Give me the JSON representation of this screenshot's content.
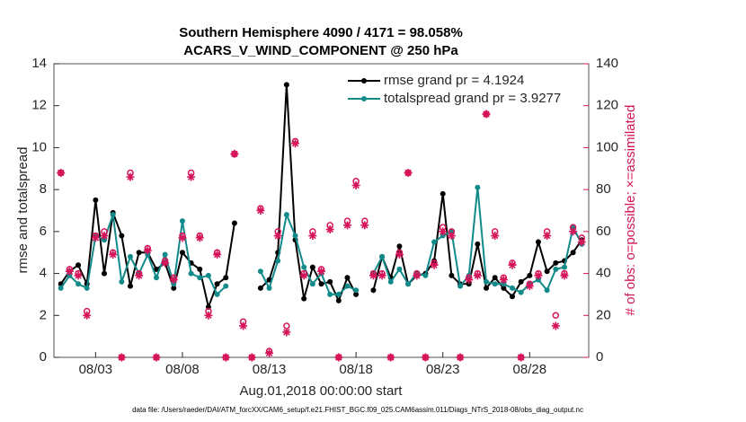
{
  "chart_data": {
    "type": "line",
    "title": "Southern Hemisphere 4090 / 4171 = 98.058%",
    "subtitle": "ACARS_V_WIND_COMPONENT @ 250 hPa",
    "xlabel": "Aug.01,2018 00:00:00 start",
    "ylabel": "rmse and totalspread",
    "y2label": "# of obs: o=possible; ×=assimilated",
    "note": "data file: /Users/raeder/DAI/ATM_forcXX/CAM6_setup/f.e21.FHIST_BGC.f09_025.CAM6assim.011/Diags_NTrS_2018-08/obs_diag_output.nc",
    "x": [
      1,
      1.5,
      2,
      2.5,
      3,
      3.5,
      4,
      4.5,
      5,
      5.5,
      6,
      6.5,
      7,
      7.5,
      8,
      8.5,
      9,
      9.5,
      10,
      10.5,
      11,
      11.5,
      12,
      12.5,
      13,
      13.5,
      14,
      14.5,
      15,
      15.5,
      16,
      16.5,
      17,
      17.5,
      18,
      18.5,
      19,
      19.5,
      20,
      20.5,
      21,
      21.5,
      22,
      22.5,
      23,
      23.5,
      24,
      24.5,
      25,
      25.5,
      26,
      26.5,
      27,
      27.5,
      28,
      28.5,
      29,
      29.5,
      30,
      30.5,
      31
    ],
    "xlim": [
      0.6,
      31.4
    ],
    "xticks": [
      {
        "value": 3,
        "label": "08/03"
      },
      {
        "value": 8,
        "label": "08/08"
      },
      {
        "value": 13,
        "label": "08/13"
      },
      {
        "value": 18,
        "label": "08/18"
      },
      {
        "value": 23,
        "label": "08/23"
      },
      {
        "value": 28,
        "label": "08/28"
      }
    ],
    "ylim": [
      0,
      14
    ],
    "yticks": [
      0,
      2,
      4,
      6,
      8,
      10,
      12,
      14
    ],
    "y2lim": [
      0,
      140
    ],
    "y2ticks": [
      0,
      20,
      40,
      60,
      80,
      100,
      120,
      140
    ],
    "y2color": "#d6145a",
    "legend": "upper right",
    "legend_text_color": "#1f4fe0",
    "series": [
      {
        "name": "rmse grand pr = 4.1924",
        "color": "#000000",
        "marker": "dot",
        "values": [
          3.5,
          4.1,
          4.4,
          3.5,
          7.5,
          4.0,
          6.9,
          5.8,
          3.4,
          5.0,
          5.0,
          4.2,
          4.5,
          3.3,
          5.0,
          4.5,
          4.2,
          2.4,
          3.5,
          3.8,
          6.4,
          null,
          null,
          3.3,
          3.7,
          5.0,
          13.0,
          5.6,
          2.8,
          4.3,
          3.5,
          3.6,
          2.7,
          3.8,
          3.0,
          null,
          3.2,
          4.8,
          3.8,
          5.3,
          3.5,
          3.9,
          4.0,
          4.6,
          7.8,
          3.9,
          3.5,
          3.5,
          5.4,
          3.3,
          3.8,
          3.3,
          2.9,
          3.6,
          3.9,
          5.5,
          4.1,
          4.5,
          4.6,
          5.0,
          5.6
        ]
      },
      {
        "name": "totalspread grand pr = 3.9277",
        "color": "#138a8a",
        "marker": "dot",
        "values": [
          3.3,
          3.9,
          3.5,
          3.3,
          5.8,
          5.6,
          6.8,
          3.6,
          4.8,
          4.0,
          4.9,
          3.8,
          4.9,
          3.5,
          6.5,
          4.0,
          3.8,
          3.9,
          3.0,
          3.4,
          null,
          null,
          null,
          4.1,
          3.3,
          4.6,
          6.8,
          5.8,
          4.3,
          3.5,
          4.0,
          3.0,
          3.0,
          3.4,
          3.2,
          null,
          4.0,
          4.8,
          3.6,
          4.2,
          3.5,
          4.0,
          3.9,
          5.5,
          5.8,
          6.0,
          3.4,
          3.9,
          8.1,
          3.6,
          3.5,
          3.5,
          3.3,
          3.1,
          3.5,
          3.7,
          3.2,
          4.2,
          4.3,
          6.2,
          5.4
        ]
      },
      {
        "axis": "y2",
        "color": "#d6145a",
        "marker": "circle",
        "values": [
          88,
          42,
          40,
          22,
          58,
          60,
          50,
          0,
          88,
          40,
          52,
          0,
          46,
          38,
          58,
          88,
          58,
          22,
          50,
          0,
          97,
          17,
          0,
          71,
          3,
          60,
          15,
          103,
          40,
          60,
          42,
          63,
          0,
          65,
          84,
          65,
          40,
          40,
          0,
          50,
          88,
          40,
          0,
          45,
          62,
          60,
          0,
          38,
          40,
          116,
          60,
          38,
          45,
          0,
          35,
          40,
          60,
          20,
          40,
          62,
          57
        ]
      },
      {
        "axis": "y2",
        "color": "#d6145a",
        "marker": "asterisk",
        "values": [
          88,
          41,
          39,
          20,
          57,
          58,
          49,
          0,
          86,
          39,
          51,
          0,
          45,
          37,
          57,
          86,
          57,
          20,
          49,
          0,
          97,
          15,
          0,
          70,
          2,
          58,
          12,
          102,
          39,
          58,
          41,
          61,
          0,
          63,
          82,
          63,
          39,
          39,
          0,
          49,
          88,
          39,
          0,
          44,
          60,
          58,
          0,
          37,
          39,
          116,
          58,
          37,
          44,
          0,
          34,
          39,
          58,
          15,
          39,
          60,
          55
        ]
      }
    ]
  }
}
